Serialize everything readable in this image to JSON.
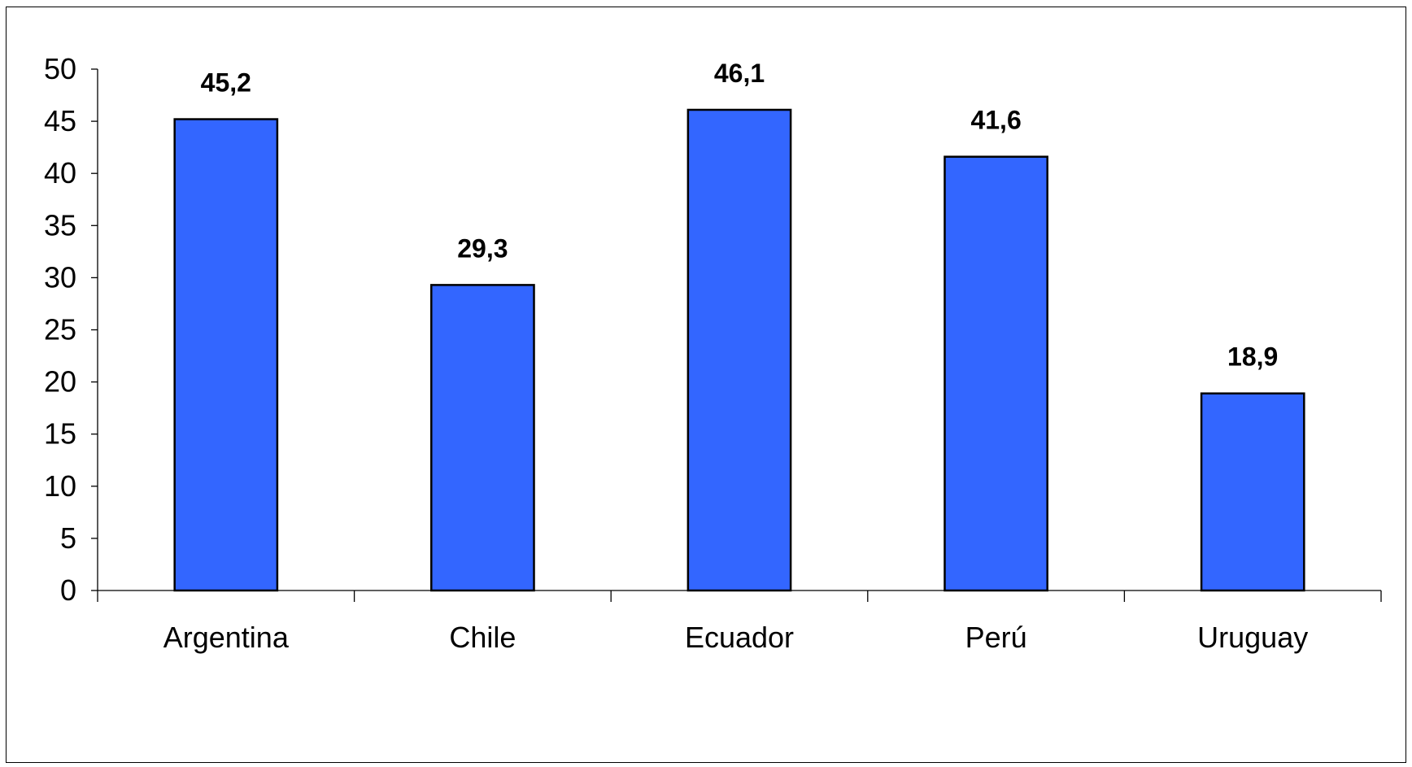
{
  "colors": {
    "bar_fill": "#3366FF",
    "bar_stroke": "#000000",
    "axis": "#000000",
    "background": "#FFFFFF"
  },
  "chart_data": {
    "type": "bar",
    "title": "",
    "xlabel": "",
    "ylabel": "",
    "categories": [
      "Argentina",
      "Chile",
      "Ecuador",
      "Perú",
      "Uruguay"
    ],
    "values": [
      45.2,
      29.3,
      46.1,
      41.6,
      18.9
    ],
    "data_labels": [
      "45,2",
      "29,3",
      "46,1",
      "41,6",
      "18,9"
    ],
    "ylim": [
      0,
      50
    ],
    "y_ticks": [
      0,
      5,
      10,
      15,
      20,
      25,
      30,
      35,
      40,
      45,
      50
    ],
    "y_tick_labels": [
      "0",
      "5",
      "10",
      "15",
      "20",
      "25",
      "30",
      "35",
      "40",
      "45",
      "50"
    ],
    "grid": false,
    "legend": "none"
  }
}
